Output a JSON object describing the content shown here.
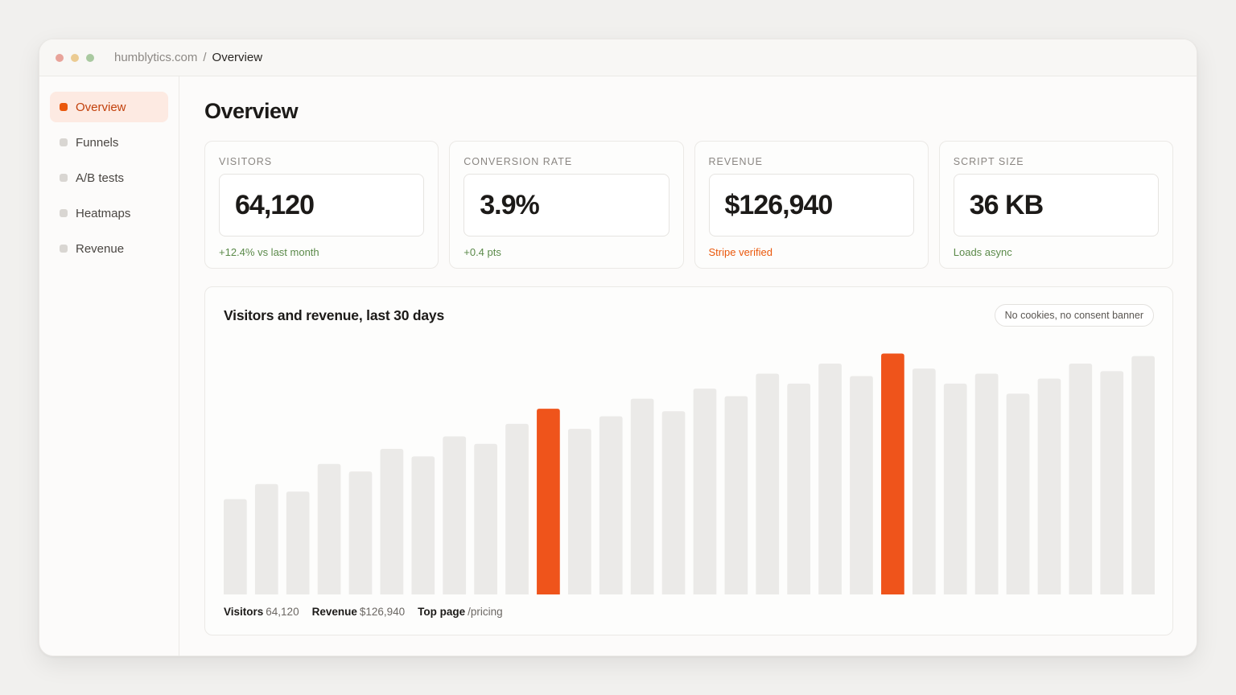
{
  "window": {
    "dots": [
      "#e8a39a",
      "#ebcb92",
      "#a9c9a0"
    ],
    "breadcrumb": {
      "site": "humblytics.com",
      "separator": "/",
      "page": "Overview"
    }
  },
  "sidebar": {
    "items": [
      {
        "label": "Overview",
        "active": true
      },
      {
        "label": "Funnels",
        "active": false
      },
      {
        "label": "A/B tests",
        "active": false
      },
      {
        "label": "Heatmaps",
        "active": false
      },
      {
        "label": "Revenue",
        "active": false
      }
    ]
  },
  "main": {
    "title": "Overview",
    "kpis": [
      {
        "label": "VISITORS",
        "value": "64,120",
        "note": "+12.4% vs last month",
        "note_color": "green"
      },
      {
        "label": "CONVERSION RATE",
        "value": "3.9%",
        "note": "+0.4 pts",
        "note_color": "green"
      },
      {
        "label": "REVENUE",
        "value": "$126,940",
        "note": "Stripe verified",
        "note_color": "orange"
      },
      {
        "label": "SCRIPT SIZE",
        "value": "36 KB",
        "note": "Loads async",
        "note_color": "green"
      }
    ]
  },
  "chart": {
    "title": "Visitors and revenue, last 30 days",
    "badge": "No cookies, no consent banner",
    "legend": [
      {
        "key": "Visitors",
        "value": "64,120"
      },
      {
        "key": "Revenue",
        "value": "$126,940"
      },
      {
        "key": "Top page",
        "value": "/pricing"
      }
    ]
  },
  "chart_data": {
    "type": "bar",
    "x": [
      1,
      2,
      3,
      4,
      5,
      6,
      7,
      8,
      9,
      10,
      11,
      12,
      13,
      14,
      15,
      16,
      17,
      18,
      19,
      20,
      21,
      22,
      23,
      24,
      25,
      26,
      27,
      28,
      29,
      30
    ],
    "values": [
      38,
      44,
      41,
      52,
      49,
      58,
      55,
      63,
      60,
      68,
      74,
      66,
      71,
      78,
      73,
      82,
      79,
      88,
      84,
      92,
      87,
      96,
      90,
      84,
      88,
      80,
      86,
      92,
      89,
      95
    ],
    "highlight_indices": [
      10,
      21
    ],
    "colors": {
      "bar": "#ebeae8",
      "highlight": "#ef541b"
    },
    "ylim": [
      0,
      100
    ]
  }
}
